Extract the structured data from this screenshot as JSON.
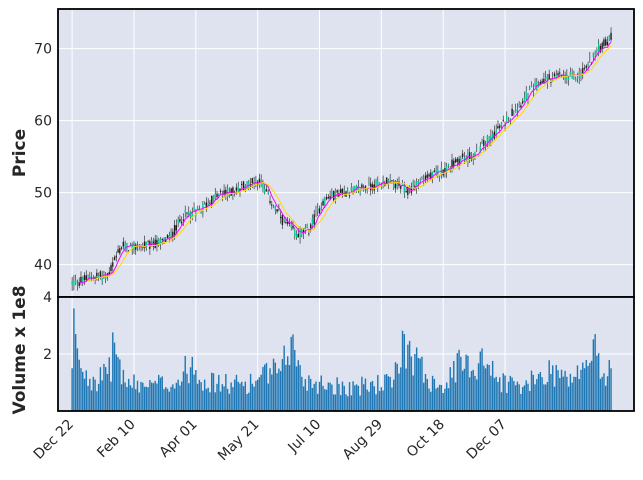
{
  "chart_data": {
    "type": "candlestick",
    "ylabel_price": "Price",
    "ylabel_volume": "Volume x 1e8",
    "xticks": [
      "Dec 22",
      "Feb 10",
      "Apr 01",
      "May 21",
      "Jul 10",
      "Aug 29",
      "Oct 18",
      "Dec 07"
    ],
    "price_yticks": [
      40,
      50,
      60,
      70
    ],
    "volume_yticks": [
      2,
      4
    ],
    "price_ylim": [
      35.5,
      75.5
    ],
    "volume_ylim": [
      0,
      4
    ],
    "grid": true,
    "background": "#dfe3ef",
    "candle_up_color": "#00c896",
    "candle_down_color": "#1a1a1a",
    "volume_color": "#1f77b4",
    "moving_averages": [
      {
        "window": 5,
        "color": "#ff00ff"
      },
      {
        "window": 10,
        "color": "#ffd700"
      }
    ],
    "close_trend": [
      {
        "t": 0,
        "price": 37.5
      },
      {
        "t": 4,
        "price": 37.6
      },
      {
        "t": 12,
        "price": 38.3
      },
      {
        "t": 20,
        "price": 38.5
      },
      {
        "t": 28,
        "price": 42.5
      },
      {
        "t": 35,
        "price": 42.4
      },
      {
        "t": 45,
        "price": 42.7
      },
      {
        "t": 55,
        "price": 43.6
      },
      {
        "t": 63,
        "price": 46.8
      },
      {
        "t": 72,
        "price": 47.5
      },
      {
        "t": 82,
        "price": 49.6
      },
      {
        "t": 92,
        "price": 50.2
      },
      {
        "t": 100,
        "price": 51.3
      },
      {
        "t": 106,
        "price": 51.8
      },
      {
        "t": 112,
        "price": 49.0
      },
      {
        "t": 120,
        "price": 45.8
      },
      {
        "t": 128,
        "price": 44.2
      },
      {
        "t": 134,
        "price": 44.8
      },
      {
        "t": 142,
        "price": 48.8
      },
      {
        "t": 150,
        "price": 49.9
      },
      {
        "t": 160,
        "price": 50.3
      },
      {
        "t": 170,
        "price": 50.9
      },
      {
        "t": 178,
        "price": 51.6
      },
      {
        "t": 184,
        "price": 51.0
      },
      {
        "t": 190,
        "price": 50.1
      },
      {
        "t": 196,
        "price": 51.6
      },
      {
        "t": 204,
        "price": 52.3
      },
      {
        "t": 212,
        "price": 53.4
      },
      {
        "t": 220,
        "price": 54.7
      },
      {
        "t": 228,
        "price": 55.2
      },
      {
        "t": 236,
        "price": 57.5
      },
      {
        "t": 244,
        "price": 59.5
      },
      {
        "t": 252,
        "price": 62.0
      },
      {
        "t": 260,
        "price": 64.2
      },
      {
        "t": 268,
        "price": 65.8
      },
      {
        "t": 276,
        "price": 66.1
      },
      {
        "t": 284,
        "price": 66.0
      },
      {
        "t": 290,
        "price": 67.0
      },
      {
        "t": 296,
        "price": 69.5
      },
      {
        "t": 305,
        "price": 71.5
      }
    ],
    "volume_profile": [
      {
        "t": 0,
        "volume": 1.5
      },
      {
        "t": 1,
        "volume": 3.6
      },
      {
        "t": 2,
        "volume": 2.7
      },
      {
        "t": 3,
        "volume": 2.2
      },
      {
        "t": 4,
        "volume": 1.8
      },
      {
        "t": 12,
        "volume": 1.2
      },
      {
        "t": 20,
        "volume": 1.3
      },
      {
        "t": 24,
        "volume": 2.4
      },
      {
        "t": 30,
        "volume": 1.0
      },
      {
        "t": 45,
        "volume": 1.0
      },
      {
        "t": 60,
        "volume": 1.1
      },
      {
        "t": 68,
        "volume": 1.9
      },
      {
        "t": 75,
        "volume": 1.1
      },
      {
        "t": 90,
        "volume": 1.0
      },
      {
        "t": 105,
        "volume": 1.1
      },
      {
        "t": 112,
        "volume": 1.5
      },
      {
        "t": 118,
        "volume": 1.4
      },
      {
        "t": 124,
        "volume": 2.6
      },
      {
        "t": 130,
        "volume": 1.2
      },
      {
        "t": 145,
        "volume": 1.0
      },
      {
        "t": 160,
        "volume": 0.9
      },
      {
        "t": 182,
        "volume": 1.1
      },
      {
        "t": 188,
        "volume": 2.7
      },
      {
        "t": 194,
        "volume": 2.0
      },
      {
        "t": 200,
        "volume": 1.3
      },
      {
        "t": 212,
        "volume": 1.0
      },
      {
        "t": 220,
        "volume": 1.9
      },
      {
        "t": 226,
        "volume": 1.4
      },
      {
        "t": 232,
        "volume": 2.2
      },
      {
        "t": 240,
        "volume": 1.2
      },
      {
        "t": 256,
        "volume": 0.9
      },
      {
        "t": 264,
        "volume": 1.3
      },
      {
        "t": 272,
        "volume": 1.6
      },
      {
        "t": 280,
        "volume": 1.2
      },
      {
        "t": 290,
        "volume": 1.5
      },
      {
        "t": 296,
        "volume": 2.7
      },
      {
        "t": 300,
        "volume": 1.2
      },
      {
        "t": 305,
        "volume": 1.5
      }
    ]
  }
}
